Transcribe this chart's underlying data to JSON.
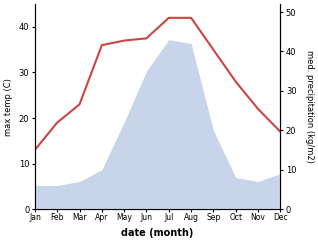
{
  "months": [
    "Jan",
    "Feb",
    "Mar",
    "Apr",
    "May",
    "Jun",
    "Jul",
    "Aug",
    "Sep",
    "Oct",
    "Nov",
    "Dec"
  ],
  "temperature": [
    13,
    19,
    23,
    36,
    37,
    37.5,
    42,
    42,
    35,
    28,
    22,
    17
  ],
  "precipitation": [
    6,
    6,
    7,
    10,
    22,
    35,
    43,
    42,
    20,
    8,
    7,
    9
  ],
  "temp_color": "#cc4444",
  "precip_fill_color": "#c8d4ea",
  "temp_ylim": [
    0,
    45
  ],
  "precip_ylim": [
    0,
    52
  ],
  "temp_yticks": [
    0,
    10,
    20,
    30,
    40
  ],
  "precip_yticks": [
    0,
    10,
    20,
    30,
    40,
    50
  ],
  "ylabel_left": "max temp (C)",
  "ylabel_right": "med. precipitation (kg/m2)",
  "xlabel": "date (month)",
  "figsize": [
    3.18,
    2.42
  ],
  "dpi": 100
}
